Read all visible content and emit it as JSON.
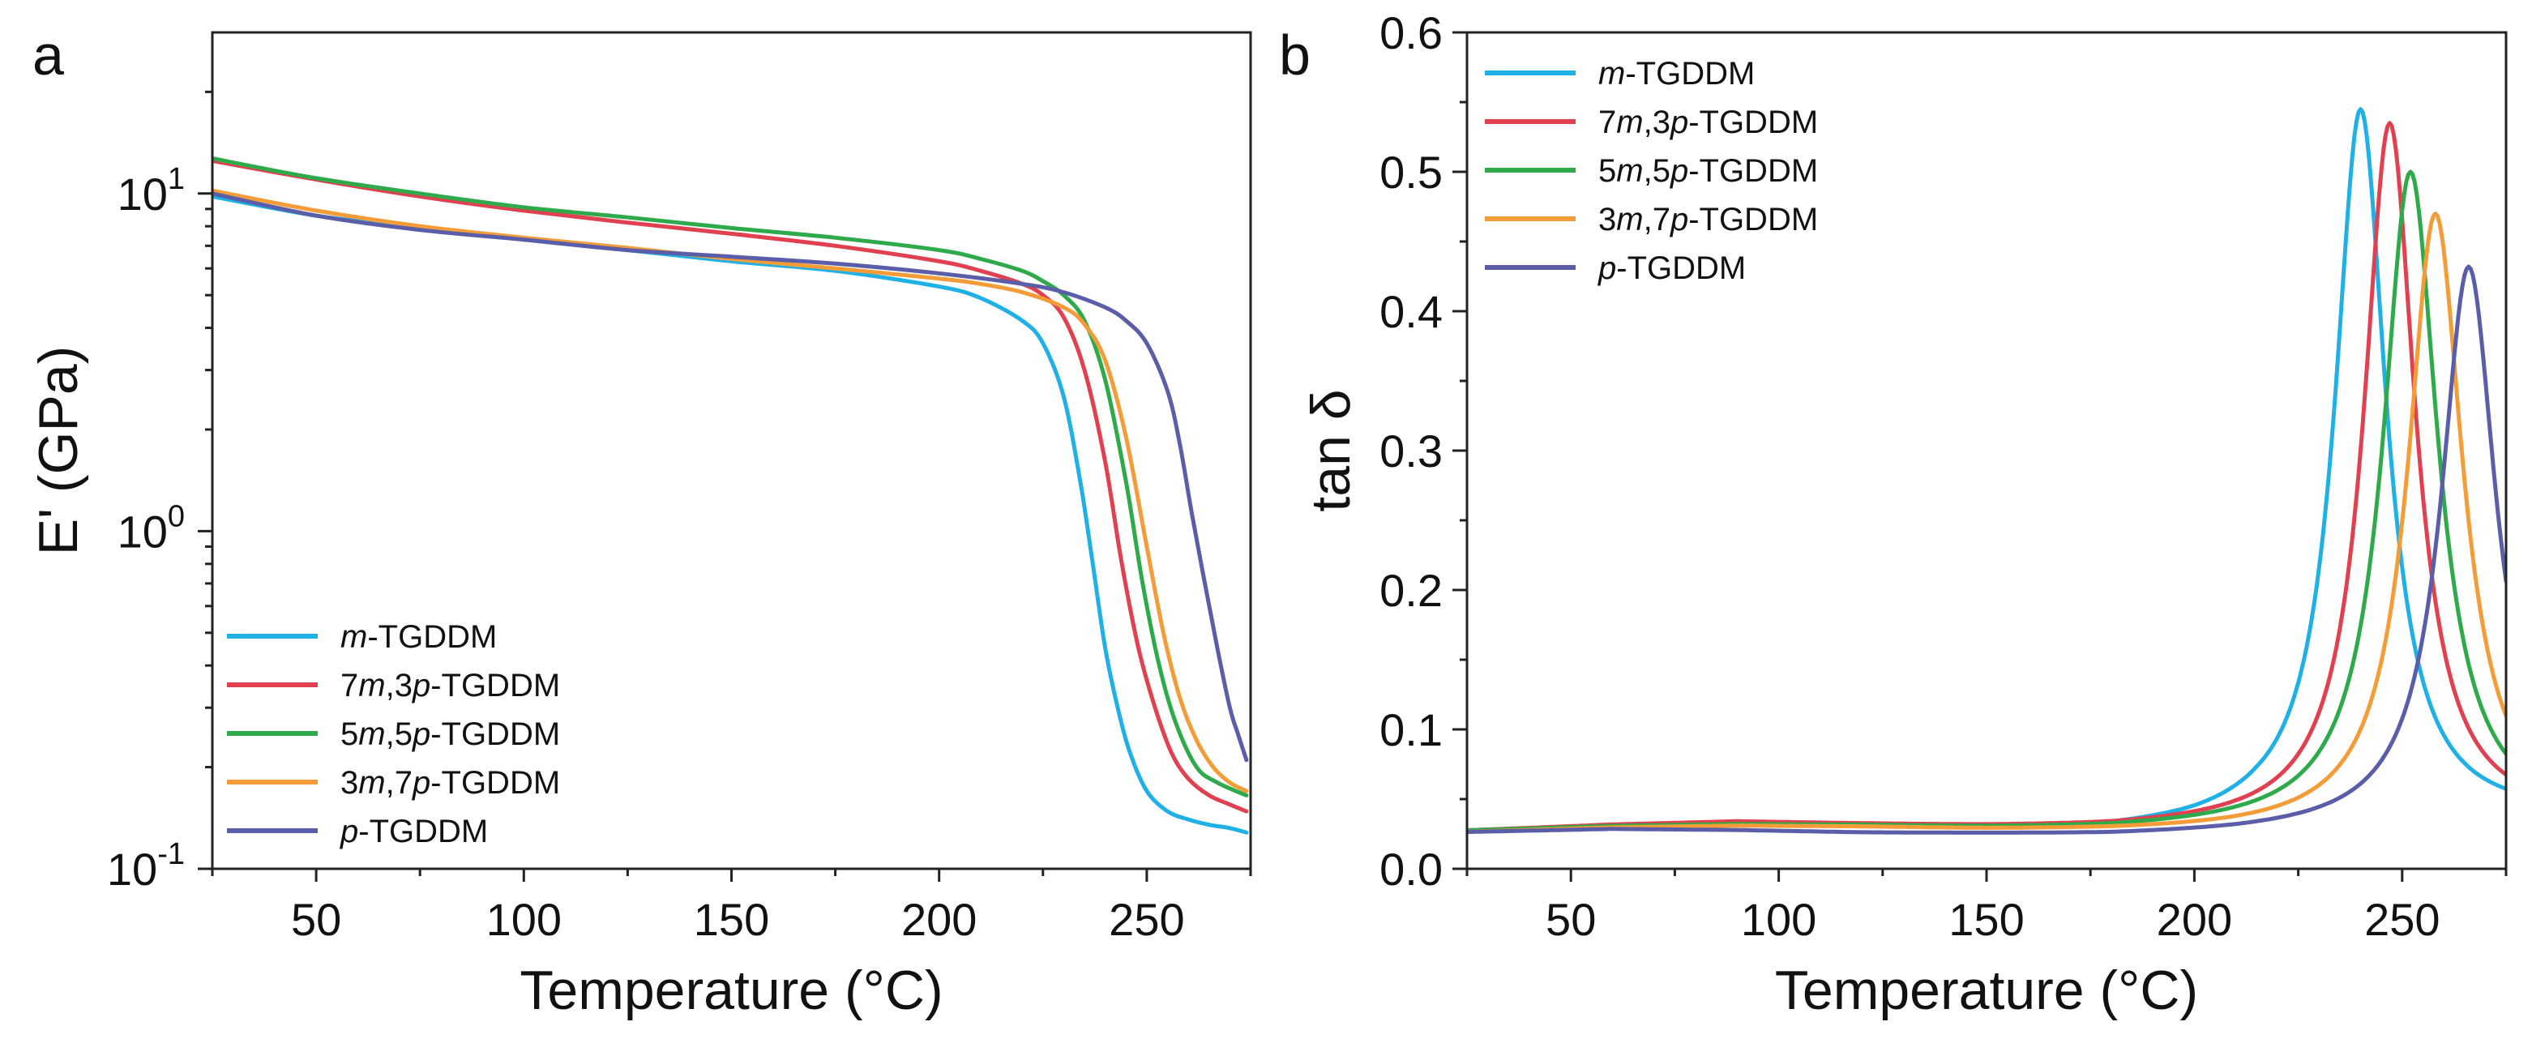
{
  "chart_data": [
    {
      "panel_label": "a",
      "type": "line",
      "xlabel": "Temperature (°C)",
      "ylabel": "E' (GPa)",
      "yscale": "log",
      "xlim": [
        25,
        275
      ],
      "ylim": [
        0.1,
        30
      ],
      "xticks": [
        50,
        100,
        150,
        200,
        250
      ],
      "xtick_labels": [
        "50",
        "100",
        "150",
        "200",
        "250"
      ],
      "yticks": [
        0.1,
        1,
        10
      ],
      "ytick_labels": [
        {
          "base": "10",
          "exp": "-1"
        },
        {
          "base": "10",
          "exp": "0"
        },
        {
          "base": "10",
          "exp": "1"
        }
      ],
      "legend_position": "lower-left",
      "series": [
        {
          "name": {
            "pre": "",
            "it1": "m",
            "mid": "",
            "it2": "",
            "post": "-TGDDM"
          },
          "color": "#1fb0e6",
          "x": [
            25,
            50,
            75,
            100,
            125,
            150,
            175,
            200,
            210,
            220,
            225,
            230,
            234,
            237,
            240,
            243,
            246,
            250,
            255,
            260,
            265,
            270,
            274
          ],
          "y": [
            9.8,
            8.6,
            7.9,
            7.3,
            6.8,
            6.3,
            5.9,
            5.3,
            4.9,
            4.2,
            3.6,
            2.5,
            1.4,
            0.8,
            0.45,
            0.3,
            0.22,
            0.17,
            0.148,
            0.14,
            0.135,
            0.132,
            0.128
          ]
        },
        {
          "name": {
            "pre": "7",
            "it1": "m",
            "mid": ",3",
            "it2": "p",
            "post": "-TGDDM"
          },
          "color": "#e0404f",
          "x": [
            25,
            50,
            75,
            100,
            125,
            150,
            175,
            200,
            210,
            220,
            225,
            230,
            235,
            240,
            244,
            248,
            252,
            256,
            260,
            265,
            270,
            274
          ],
          "y": [
            12.5,
            11.0,
            9.8,
            8.9,
            8.2,
            7.6,
            7.0,
            6.3,
            5.9,
            5.4,
            5.0,
            4.3,
            3.0,
            1.6,
            0.8,
            0.45,
            0.3,
            0.22,
            0.185,
            0.165,
            0.155,
            0.148
          ]
        },
        {
          "name": {
            "pre": "5",
            "it1": "m",
            "mid": ",5",
            "it2": "p",
            "post": "-TGDDM"
          },
          "color": "#2eaa4a",
          "x": [
            25,
            50,
            75,
            100,
            125,
            150,
            175,
            200,
            210,
            220,
            225,
            230,
            235,
            240,
            245,
            249,
            253,
            257,
            262,
            267,
            274
          ],
          "y": [
            12.7,
            11.1,
            10.0,
            9.1,
            8.5,
            7.9,
            7.4,
            6.8,
            6.4,
            5.9,
            5.5,
            5.0,
            4.2,
            2.8,
            1.4,
            0.7,
            0.4,
            0.27,
            0.2,
            0.18,
            0.165
          ]
        },
        {
          "name": {
            "pre": "3",
            "it1": "m",
            "mid": ",7",
            "it2": "p",
            "post": "-TGDDM"
          },
          "color": "#f39c38",
          "x": [
            25,
            50,
            75,
            100,
            125,
            150,
            175,
            200,
            210,
            220,
            230,
            235,
            240,
            245,
            250,
            254,
            258,
            262,
            266,
            270,
            274
          ],
          "y": [
            10.2,
            8.9,
            8.0,
            7.4,
            6.9,
            6.4,
            6.0,
            5.6,
            5.4,
            5.1,
            4.6,
            4.1,
            3.2,
            1.9,
            0.9,
            0.5,
            0.32,
            0.24,
            0.2,
            0.18,
            0.17
          ]
        },
        {
          "name": {
            "pre": "",
            "it1": "p",
            "mid": "",
            "it2": "",
            "post": "-TGDDM"
          },
          "color": "#5a5ea8",
          "x": [
            25,
            50,
            75,
            100,
            125,
            150,
            175,
            200,
            220,
            230,
            240,
            245,
            250,
            255,
            258,
            261,
            264,
            267,
            270,
            272,
            274
          ],
          "y": [
            10.0,
            8.6,
            7.8,
            7.3,
            6.8,
            6.5,
            6.2,
            5.8,
            5.4,
            5.1,
            4.6,
            4.2,
            3.6,
            2.6,
            1.8,
            1.1,
            0.7,
            0.45,
            0.3,
            0.25,
            0.21
          ]
        }
      ]
    },
    {
      "panel_label": "b",
      "type": "line",
      "xlabel": "Temperature (°C)",
      "ylabel": "tan δ",
      "yscale": "linear",
      "xlim": [
        25,
        275
      ],
      "ylim": [
        0,
        0.6
      ],
      "xticks": [
        50,
        100,
        150,
        200,
        250
      ],
      "xtick_labels": [
        "50",
        "100",
        "150",
        "200",
        "250"
      ],
      "yticks": [
        0,
        0.1,
        0.2,
        0.3,
        0.4,
        0.5,
        0.6
      ],
      "ytick_labels": [
        "0.0",
        "0.1",
        "0.2",
        "0.3",
        "0.4",
        "0.5",
        "0.6"
      ],
      "legend_position": "top-left",
      "series": [
        {
          "name": {
            "pre": "",
            "it1": "m",
            "mid": "",
            "it2": "",
            "post": "-TGDDM"
          },
          "color": "#1fb0e6",
          "peak": {
            "x": 240,
            "y": 0.545,
            "width": 7.5
          },
          "baseline": [
            [
              25,
              0.027
            ],
            [
              60,
              0.03
            ],
            [
              90,
              0.031
            ],
            [
              120,
              0.029
            ],
            [
              150,
              0.027
            ],
            [
              180,
              0.026
            ],
            [
              200,
              0.028
            ],
            [
              215,
              0.031
            ],
            [
              240,
              0.03
            ],
            [
              275,
              0.035
            ]
          ]
        },
        {
          "name": {
            "pre": "7",
            "it1": "m",
            "mid": ",3",
            "it2": "p",
            "post": "-TGDDM"
          },
          "color": "#e0404f",
          "peak": {
            "x": 247,
            "y": 0.535,
            "width": 7.5
          },
          "baseline": [
            [
              25,
              0.027
            ],
            [
              60,
              0.031
            ],
            [
              90,
              0.033
            ],
            [
              120,
              0.031
            ],
            [
              150,
              0.029
            ],
            [
              180,
              0.028
            ],
            [
              205,
              0.029
            ],
            [
              230,
              0.03
            ],
            [
              275,
              0.034
            ]
          ]
        },
        {
          "name": {
            "pre": "5",
            "it1": "m",
            "mid": ",5",
            "it2": "p",
            "post": "-TGDDM"
          },
          "color": "#2eaa4a",
          "peak": {
            "x": 252,
            "y": 0.5,
            "width": 8.0
          },
          "baseline": [
            [
              25,
              0.027
            ],
            [
              60,
              0.03
            ],
            [
              90,
              0.031
            ],
            [
              120,
              0.03
            ],
            [
              150,
              0.028
            ],
            [
              180,
              0.027
            ],
            [
              205,
              0.028
            ],
            [
              230,
              0.029
            ],
            [
              275,
              0.032
            ]
          ]
        },
        {
          "name": {
            "pre": "3",
            "it1": "m",
            "mid": ",7",
            "it2": "p",
            "post": "-TGDDM"
          },
          "color": "#f39c38",
          "peak": {
            "x": 258,
            "y": 0.47,
            "width": 8.0
          },
          "baseline": [
            [
              25,
              0.026
            ],
            [
              60,
              0.029
            ],
            [
              90,
              0.03
            ],
            [
              120,
              0.029
            ],
            [
              150,
              0.027
            ],
            [
              180,
              0.026
            ],
            [
              210,
              0.026
            ],
            [
              240,
              0.027
            ],
            [
              275,
              0.03
            ]
          ]
        },
        {
          "name": {
            "pre": "",
            "it1": "p",
            "mid": "",
            "it2": "",
            "post": "-TGDDM"
          },
          "color": "#5a5ea8",
          "peak": {
            "x": 266,
            "y": 0.432,
            "width": 8.0
          },
          "baseline": [
            [
              25,
              0.026
            ],
            [
              60,
              0.028
            ],
            [
              90,
              0.027
            ],
            [
              120,
              0.025
            ],
            [
              150,
              0.024
            ],
            [
              180,
              0.023
            ],
            [
              210,
              0.024
            ],
            [
              240,
              0.026
            ],
            [
              275,
              0.028
            ]
          ]
        }
      ]
    }
  ]
}
